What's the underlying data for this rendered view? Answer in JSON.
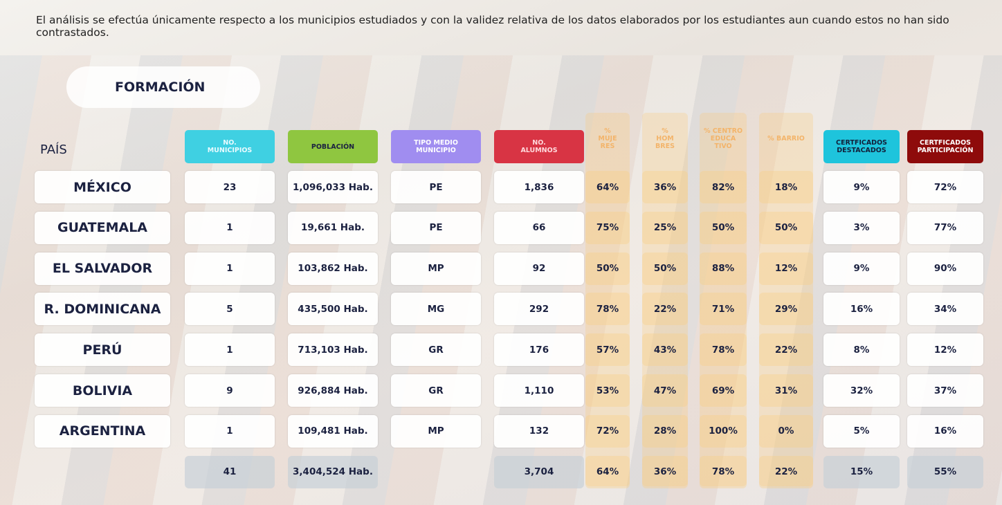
{
  "intro": "El análisis se efectúa únicamente respecto a los municipios estudiados y con la validez relativa de los datos elaborados por los estudiantes aun cuando estos no han sido contrastados.",
  "section": "FORMACIÓN",
  "table": {
    "country_header": "PAÍS",
    "headers": [
      [
        "NO.",
        "MUNICIPIOS"
      ],
      [
        "POBLACIÓN"
      ],
      [
        "TIPO MEDIO",
        "MUNICIPIO"
      ],
      [
        "NO.",
        "ALUMNOS"
      ],
      [
        "%",
        "MUJE",
        "RES"
      ],
      [
        "%",
        "HOM",
        "BRES"
      ],
      [
        "% CENTRO",
        "EDUCA",
        "TIVO"
      ],
      [
        "% BARRIO"
      ],
      [
        "CERTFICADOS",
        "DESTACADOS"
      ],
      [
        "CERTFICADOS",
        "PARTICIPACIÓN"
      ]
    ],
    "rows": [
      [
        "MÉXICO",
        "23",
        "1,096,033 Hab.",
        "PE",
        "1,836",
        "64%",
        "36%",
        "82%",
        "18%",
        "9%",
        "72%"
      ],
      [
        "GUATEMALA",
        "1",
        "19,661 Hab.",
        "PE",
        "66",
        "75%",
        "25%",
        "50%",
        "50%",
        "3%",
        "77%"
      ],
      [
        "EL SALVADOR",
        "1",
        "103,862 Hab.",
        "MP",
        "92",
        "50%",
        "50%",
        "88%",
        "12%",
        "9%",
        "90%"
      ],
      [
        "R. DOMINICANA",
        "5",
        "435,500 Hab.",
        "MG",
        "292",
        "78%",
        "22%",
        "71%",
        "29%",
        "16%",
        "34%"
      ],
      [
        "PERÚ",
        "1",
        "713,103 Hab.",
        "GR",
        "176",
        "57%",
        "43%",
        "78%",
        "22%",
        "8%",
        "12%"
      ],
      [
        "BOLIVIA",
        "9",
        "926,884 Hab.",
        "GR",
        "1,110",
        "53%",
        "47%",
        "69%",
        "31%",
        "32%",
        "37%"
      ],
      [
        "ARGENTINA",
        "1",
        "109,481 Hab.",
        "MP",
        "132",
        "72%",
        "28%",
        "100%",
        "0%",
        "5%",
        "16%"
      ]
    ],
    "totals": [
      null,
      "41",
      "3,404,524 Hab.",
      null,
      "3,704",
      "64%",
      "36%",
      "78%",
      "22%",
      "15%",
      "55%"
    ]
  }
}
